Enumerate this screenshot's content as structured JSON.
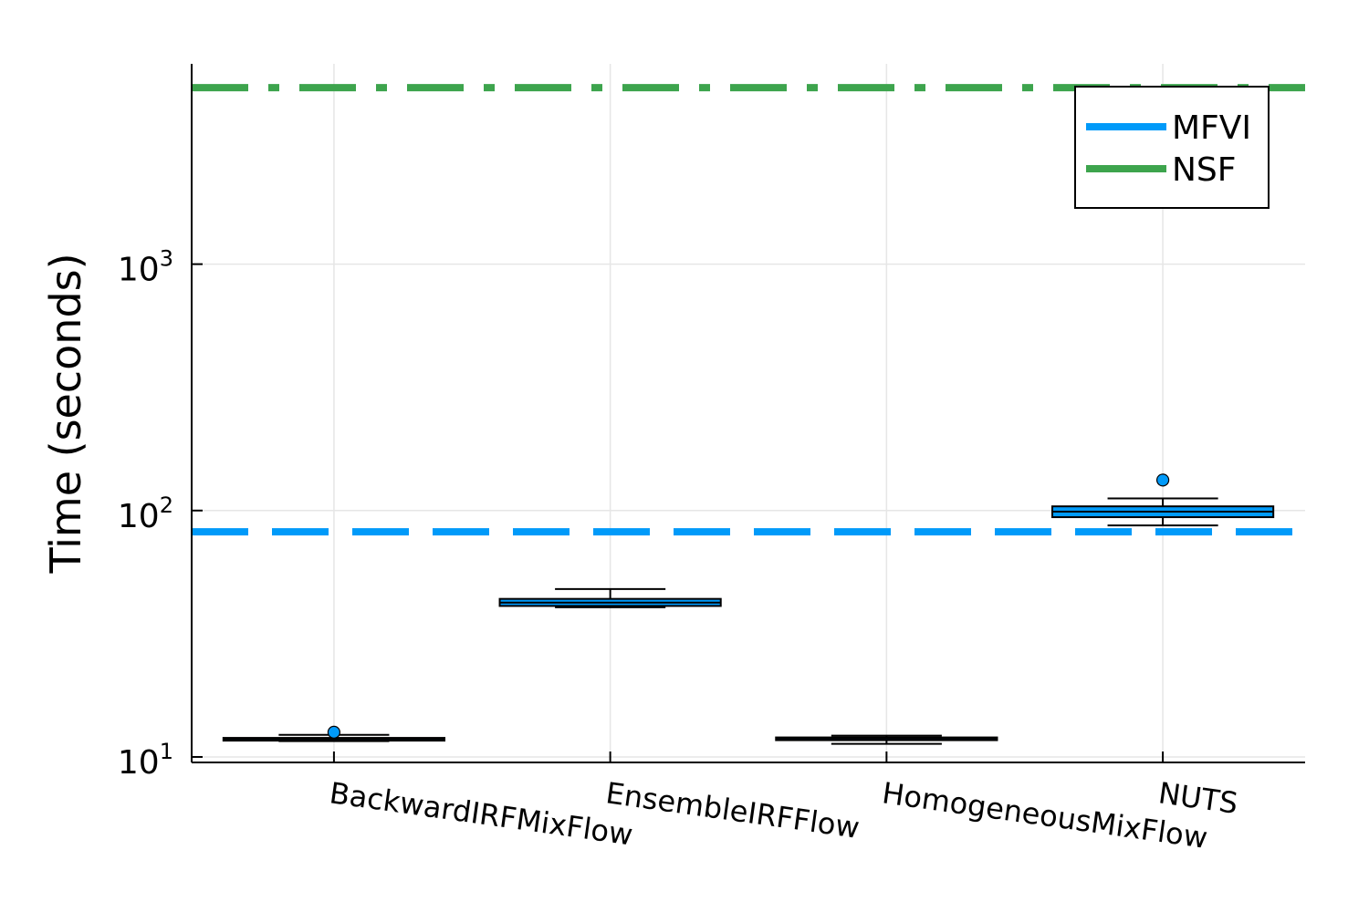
{
  "chart_data": {
    "type": "box",
    "ylabel": "Time (seconds)",
    "yscale": "log10",
    "ylim": [
      9.5,
      6500
    ],
    "yticks": [
      {
        "value": 10,
        "base": "10",
        "exp": "1"
      },
      {
        "value": 100,
        "base": "10",
        "exp": "2"
      },
      {
        "value": 1000,
        "base": "10",
        "exp": "3"
      }
    ],
    "categories": [
      "BackwardIRFMixFlow",
      "EnsembleIRFFlow",
      "HomogeneousMixFlow",
      "NUTS"
    ],
    "boxes": [
      {
        "category": "BackwardIRFMixFlow",
        "whisker_low": 11.6,
        "q1": 11.7,
        "median": 11.85,
        "q3": 11.95,
        "whisker_high": 12.3,
        "outliers": [
          12.6
        ]
      },
      {
        "category": "EnsembleIRFFlow",
        "whisker_low": 40.5,
        "q1": 41.0,
        "median": 42.3,
        "q3": 43.8,
        "whisker_high": 48.0,
        "outliers": []
      },
      {
        "category": "HomogeneousMixFlow",
        "whisker_low": 11.3,
        "q1": 11.7,
        "median": 11.9,
        "q3": 12.0,
        "whisker_high": 12.2,
        "outliers": []
      },
      {
        "category": "NUTS",
        "whisker_low": 87.0,
        "q1": 94.0,
        "median": 99.0,
        "q3": 104.0,
        "whisker_high": 112.0,
        "outliers": [
          133.0
        ]
      }
    ],
    "reference_lines": [
      {
        "name": "MFVI",
        "value": 82,
        "color": "#009af9",
        "style": "dashed"
      },
      {
        "name": "NSF",
        "value": 5200,
        "color": "#3da44d",
        "style": "dashdot"
      }
    ],
    "box_color": "#009af9",
    "legend": {
      "position": "top-right",
      "entries": [
        "MFVI",
        "NSF"
      ]
    },
    "grid": true
  }
}
